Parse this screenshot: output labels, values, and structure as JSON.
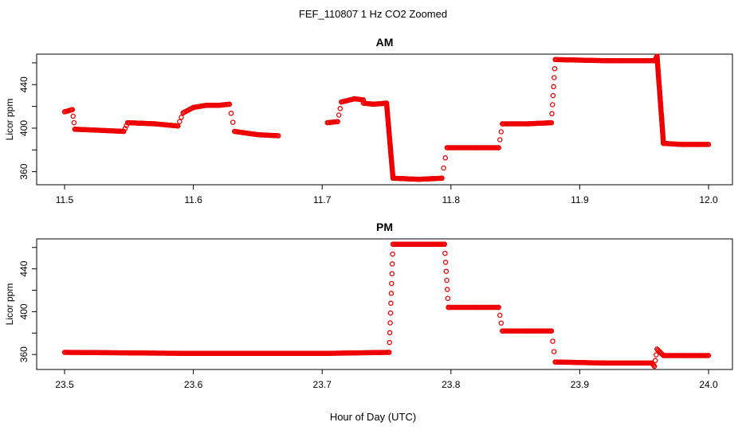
{
  "figure": {
    "title": "FEF_110807  1 Hz CO2 Zoomed",
    "xlabel": "Hour of Day (UTC)"
  },
  "colors": {
    "points": "#ee0000",
    "axes": "#000000"
  },
  "chart_data": [
    {
      "type": "scatter",
      "title": "AM",
      "xlabel": "Hour of Day (UTC)",
      "ylabel": "Licor ppm",
      "xlim": [
        11.5,
        12.0
      ],
      "ylim": [
        348,
        468
      ],
      "x_ticks": [
        "11.5",
        "11.6",
        "11.7",
        "11.8",
        "11.9",
        "12.0"
      ],
      "y_ticks": [
        "360",
        "400",
        "440"
      ],
      "grid": false,
      "legend": "none",
      "marker": "open-circle",
      "series": [
        {
          "segments": [
            {
              "x": [
                11.5,
                11.506
              ],
              "y": [
                415,
                417
              ]
            },
            {
              "x": [
                11.506,
                11.508
              ],
              "y": [
                417,
                399
              ]
            },
            {
              "x": [
                11.508,
                11.528,
                11.546
              ],
              "y": [
                399,
                398,
                397
              ]
            },
            {
              "x": [
                11.546,
                11.549
              ],
              "y": [
                397,
                405
              ]
            },
            {
              "x": [
                11.549,
                11.57,
                11.588
              ],
              "y": [
                405,
                404,
                402
              ]
            },
            {
              "x": [
                11.588,
                11.592
              ],
              "y": [
                402,
                414
              ]
            },
            {
              "x": [
                11.592,
                11.6,
                11.61,
                11.62,
                11.628
              ],
              "y": [
                414,
                419,
                421,
                421,
                422
              ]
            },
            {
              "x": [
                11.628,
                11.632
              ],
              "y": [
                422,
                397
              ]
            },
            {
              "x": [
                11.632,
                11.65,
                11.666
              ],
              "y": [
                397,
                394,
                393
              ]
            },
            {
              "x": [
                11.704,
                11.712
              ],
              "y": [
                405,
                406
              ]
            },
            {
              "x": [
                11.712,
                11.715
              ],
              "y": [
                406,
                424
              ]
            },
            {
              "x": [
                11.715,
                11.725,
                11.732
              ],
              "y": [
                424,
                427,
                426
              ]
            },
            {
              "x": [
                11.732,
                11.74,
                11.75
              ],
              "y": [
                423,
                422,
                423
              ]
            },
            {
              "x": [
                11.75,
                11.755
              ],
              "y": [
                423,
                354
              ]
            },
            {
              "x": [
                11.755,
                11.775,
                11.793
              ],
              "y": [
                354,
                353,
                354
              ]
            },
            {
              "x": [
                11.793,
                11.797
              ],
              "y": [
                354,
                382
              ]
            },
            {
              "x": [
                11.797,
                11.82,
                11.837
              ],
              "y": [
                382,
                382,
                382
              ]
            },
            {
              "x": [
                11.837,
                11.84
              ],
              "y": [
                382,
                404
              ]
            },
            {
              "x": [
                11.84,
                11.86,
                11.878
              ],
              "y": [
                404,
                404,
                405
              ]
            },
            {
              "x": [
                11.878,
                11.881
              ],
              "y": [
                405,
                463
              ]
            },
            {
              "x": [
                11.881,
                11.92,
                11.958
              ],
              "y": [
                463,
                462,
                462
              ]
            },
            {
              "x": [
                11.958,
                11.96
              ],
              "y": [
                462,
                466
              ]
            },
            {
              "x": [
                11.96,
                11.965
              ],
              "y": [
                466,
                386
              ]
            },
            {
              "x": [
                11.965,
                11.98,
                12.0
              ],
              "y": [
                386,
                385,
                385
              ]
            }
          ]
        }
      ]
    },
    {
      "type": "scatter",
      "title": "PM",
      "xlabel": "Hour of Day (UTC)",
      "ylabel": "Licor ppm",
      "xlim": [
        23.5,
        24.0
      ],
      "ylim": [
        346,
        468
      ],
      "x_ticks": [
        "23.5",
        "23.6",
        "23.7",
        "23.8",
        "23.9",
        "24.0"
      ],
      "y_ticks": [
        "360",
        "400",
        "440"
      ],
      "grid": false,
      "legend": "none",
      "marker": "open-circle",
      "series": [
        {
          "segments": [
            {
              "x": [
                23.5,
                23.6,
                23.7,
                23.752
              ],
              "y": [
                362,
                361,
                361,
                362
              ]
            },
            {
              "x": [
                23.752,
                23.755
              ],
              "y": [
                362,
                463
              ]
            },
            {
              "x": [
                23.755,
                23.775,
                23.795
              ],
              "y": [
                463,
                463,
                463
              ]
            },
            {
              "x": [
                23.795,
                23.798
              ],
              "y": [
                463,
                404
              ]
            },
            {
              "x": [
                23.798,
                23.82,
                23.837
              ],
              "y": [
                404,
                404,
                404
              ]
            },
            {
              "x": [
                23.837,
                23.84
              ],
              "y": [
                404,
                382
              ]
            },
            {
              "x": [
                23.84,
                23.86,
                23.878
              ],
              "y": [
                382,
                382,
                382
              ]
            },
            {
              "x": [
                23.878,
                23.881
              ],
              "y": [
                382,
                353
              ]
            },
            {
              "x": [
                23.881,
                23.92,
                23.956
              ],
              "y": [
                353,
                352,
                352
              ]
            },
            {
              "x": [
                23.956,
                23.958
              ],
              "y": [
                352,
                349
              ]
            },
            {
              "x": [
                23.958,
                23.96
              ],
              "y": [
                349,
                365
              ]
            },
            {
              "x": [
                23.96,
                23.965
              ],
              "y": [
                365,
                359
              ]
            },
            {
              "x": [
                23.965,
                23.98,
                24.0
              ],
              "y": [
                359,
                359,
                359
              ]
            }
          ]
        }
      ]
    }
  ]
}
